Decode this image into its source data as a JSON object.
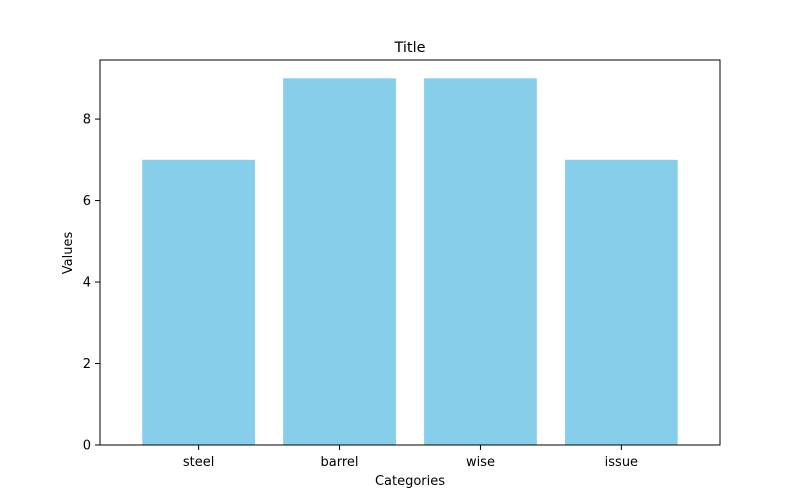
{
  "chart_data": {
    "type": "bar",
    "title": "Title",
    "xlabel": "Categories",
    "ylabel": "Values",
    "categories": [
      "steel",
      "barrel",
      "wise",
      "issue"
    ],
    "values": [
      7,
      9,
      9,
      7
    ],
    "ylim": [
      0,
      9.45
    ],
    "yticks": [
      0,
      2,
      4,
      6,
      8
    ],
    "bar_color": "#87ceeb",
    "grid": false,
    "legend": "none"
  }
}
